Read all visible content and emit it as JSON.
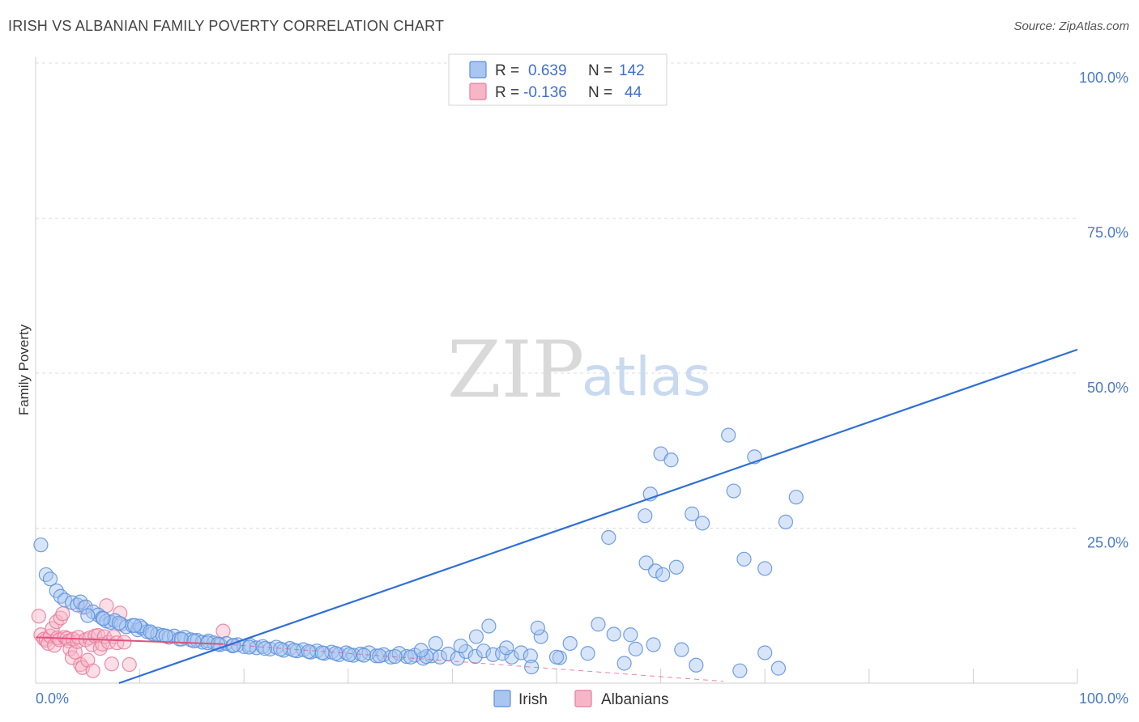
{
  "title": "IRISH VS ALBANIAN FAMILY POVERTY CORRELATION CHART",
  "source": "Source: ZipAtlas.com",
  "watermark": {
    "zip": "ZIP",
    "atlas": "atlas"
  },
  "colors": {
    "irish_fill": "#a9c6f0",
    "irish_stroke": "#5b8fdc",
    "irish_line": "#2f6fd6",
    "albanian_fill": "#f6b6c8",
    "albanian_stroke": "#e87a9c",
    "albanian_line": "#e0507e",
    "grid": "#dcdcdc",
    "tick_text": "#4a7bc8"
  },
  "legend": {
    "r_label": "R =",
    "n_label": "N =",
    "irish": {
      "r": "0.639",
      "n": "142"
    },
    "albanian": {
      "r": "-0.136",
      "n": "44"
    }
  },
  "chart_data": {
    "type": "scatter",
    "title": "IRISH VS ALBANIAN FAMILY POVERTY CORRELATION CHART",
    "xlabel": "",
    "ylabel": "Family Poverty",
    "xlim": [
      0,
      100
    ],
    "ylim": [
      0,
      100
    ],
    "x_tick_labels": [
      "0.0%",
      "100.0%"
    ],
    "y_ticks": [
      25,
      50,
      75,
      100
    ],
    "y_tick_labels": [
      "25.0%",
      "50.0%",
      "75.0%",
      "100.0%"
    ],
    "grid": true,
    "legend_position": "top-center",
    "series": [
      {
        "name": "Irish",
        "r": 0.639,
        "n": 142,
        "trend": {
          "x": [
            8,
            100
          ],
          "y": [
            0,
            53.8
          ]
        },
        "points": [
          [
            0.5,
            22.3
          ],
          [
            1.0,
            17.5
          ],
          [
            1.4,
            16.8
          ],
          [
            2.0,
            14.9
          ],
          [
            2.4,
            14.0
          ],
          [
            2.8,
            13.4
          ],
          [
            3.5,
            13.0
          ],
          [
            4.0,
            12.6
          ],
          [
            4.3,
            13.1
          ],
          [
            4.8,
            12.3
          ],
          [
            5.5,
            11.5
          ],
          [
            6.0,
            11.0
          ],
          [
            6.4,
            10.5
          ],
          [
            6.8,
            10.0
          ],
          [
            7.2,
            9.8
          ],
          [
            7.6,
            10.1
          ],
          [
            8.2,
            9.5
          ],
          [
            8.7,
            9.1
          ],
          [
            9.3,
            9.3
          ],
          [
            9.8,
            8.6
          ],
          [
            10.2,
            8.9
          ],
          [
            10.7,
            8.3
          ],
          [
            11.2,
            8.0
          ],
          [
            11.7,
            7.9
          ],
          [
            12.2,
            7.7
          ],
          [
            12.8,
            7.4
          ],
          [
            13.3,
            7.6
          ],
          [
            13.8,
            7.1
          ],
          [
            14.3,
            7.4
          ],
          [
            14.9,
            7.0
          ],
          [
            15.5,
            6.9
          ],
          [
            16.0,
            6.6
          ],
          [
            16.6,
            6.8
          ],
          [
            17.1,
            6.5
          ],
          [
            17.7,
            6.2
          ],
          [
            18.3,
            6.4
          ],
          [
            18.9,
            6.0
          ],
          [
            19.4,
            6.2
          ],
          [
            20.0,
            5.9
          ],
          [
            20.6,
            6.1
          ],
          [
            21.2,
            5.7
          ],
          [
            21.8,
            5.9
          ],
          [
            22.5,
            5.5
          ],
          [
            23.1,
            5.8
          ],
          [
            23.8,
            5.3
          ],
          [
            24.4,
            5.6
          ],
          [
            25.1,
            5.2
          ],
          [
            25.7,
            5.4
          ],
          [
            26.4,
            5.0
          ],
          [
            27.0,
            5.2
          ],
          [
            27.7,
            4.8
          ],
          [
            28.4,
            5.0
          ],
          [
            29.1,
            4.6
          ],
          [
            29.8,
            4.9
          ],
          [
            30.5,
            4.5
          ],
          [
            31.2,
            4.7
          ],
          [
            32.0,
            4.9
          ],
          [
            32.7,
            4.4
          ],
          [
            33.4,
            4.6
          ],
          [
            34.1,
            4.2
          ],
          [
            34.9,
            4.8
          ],
          [
            35.6,
            4.3
          ],
          [
            36.4,
            4.5
          ],
          [
            37.2,
            4.0
          ],
          [
            38.0,
            4.4
          ],
          [
            38.8,
            4.2
          ],
          [
            39.6,
            4.7
          ],
          [
            40.5,
            4.0
          ],
          [
            41.3,
            5.1
          ],
          [
            42.2,
            4.3
          ],
          [
            43.0,
            5.2
          ],
          [
            43.9,
            4.6
          ],
          [
            44.8,
            4.8
          ],
          [
            45.7,
            4.2
          ],
          [
            46.6,
            4.9
          ],
          [
            47.5,
            4.4
          ],
          [
            10.0,
            9.2
          ],
          [
            11.0,
            8.3
          ],
          [
            12.5,
            7.6
          ],
          [
            14.0,
            7.1
          ],
          [
            15.2,
            6.8
          ],
          [
            16.5,
            6.5
          ],
          [
            17.5,
            6.3
          ],
          [
            19.0,
            6.1
          ],
          [
            20.5,
            5.8
          ],
          [
            22.0,
            5.6
          ],
          [
            23.5,
            5.5
          ],
          [
            24.8,
            5.3
          ],
          [
            26.2,
            5.1
          ],
          [
            27.5,
            4.9
          ],
          [
            28.8,
            4.8
          ],
          [
            30.1,
            4.6
          ],
          [
            31.5,
            4.5
          ],
          [
            33.0,
            4.4
          ],
          [
            34.5,
            4.3
          ],
          [
            36.0,
            4.2
          ],
          [
            37.5,
            4.3
          ],
          [
            5.0,
            10.9
          ],
          [
            6.5,
            10.4
          ],
          [
            8.0,
            9.7
          ],
          [
            9.5,
            9.3
          ],
          [
            37.0,
            5.3
          ],
          [
            38.4,
            6.4
          ],
          [
            40.8,
            6.0
          ],
          [
            42.3,
            7.5
          ],
          [
            43.5,
            9.2
          ],
          [
            47.6,
            2.6
          ],
          [
            48.5,
            7.5
          ],
          [
            50.3,
            4.1
          ],
          [
            51.3,
            6.4
          ],
          [
            55.5,
            7.9
          ],
          [
            57.1,
            7.8
          ],
          [
            57.6,
            5.5
          ],
          [
            48.2,
            8.9
          ],
          [
            54.0,
            9.5
          ],
          [
            53.0,
            4.8
          ],
          [
            45.2,
            5.7
          ],
          [
            50.0,
            4.2
          ],
          [
            56.5,
            3.2
          ],
          [
            59.3,
            6.2
          ],
          [
            62.0,
            5.4
          ],
          [
            63.4,
            2.9
          ],
          [
            67.6,
            2.0
          ],
          [
            70.0,
            4.9
          ],
          [
            71.3,
            2.4
          ],
          [
            58.6,
            19.4
          ],
          [
            59.5,
            18.1
          ],
          [
            60.2,
            17.5
          ],
          [
            61.5,
            18.7
          ],
          [
            59.0,
            30.5
          ],
          [
            58.5,
            27.0
          ],
          [
            55.0,
            23.5
          ],
          [
            63.0,
            27.3
          ],
          [
            64.0,
            25.8
          ],
          [
            67.0,
            31.0
          ],
          [
            66.5,
            40.0
          ],
          [
            69.0,
            36.5
          ],
          [
            73.0,
            30.0
          ],
          [
            72.0,
            26.0
          ],
          [
            68.0,
            20.0
          ],
          [
            70.0,
            18.5
          ],
          [
            60.0,
            37.0
          ],
          [
            61.0,
            36.0
          ]
        ]
      },
      {
        "name": "Albanians",
        "r": -0.136,
        "n": 44,
        "trend": {
          "x": [
            0,
            18
          ],
          "y": [
            7.4,
            6.3
          ]
        },
        "trend_dashed": {
          "x": [
            18,
            66
          ],
          "y": [
            6.3,
            0.3
          ]
        },
        "points": [
          [
            0.3,
            10.8
          ],
          [
            0.5,
            7.8
          ],
          [
            0.8,
            7.1
          ],
          [
            1.0,
            6.9
          ],
          [
            1.2,
            6.4
          ],
          [
            1.4,
            7.6
          ],
          [
            1.6,
            8.8
          ],
          [
            1.8,
            6.1
          ],
          [
            2.0,
            9.9
          ],
          [
            2.1,
            7.3
          ],
          [
            2.3,
            7.0
          ],
          [
            2.4,
            10.5
          ],
          [
            2.6,
            11.2
          ],
          [
            2.8,
            7.4
          ],
          [
            3.0,
            7.2
          ],
          [
            3.2,
            6.8
          ],
          [
            3.3,
            5.5
          ],
          [
            3.5,
            4.1
          ],
          [
            3.6,
            7.1
          ],
          [
            3.8,
            5.0
          ],
          [
            4.0,
            6.7
          ],
          [
            4.1,
            7.4
          ],
          [
            4.3,
            3.0
          ],
          [
            4.5,
            2.5
          ],
          [
            4.6,
            12.2
          ],
          [
            4.8,
            7.0
          ],
          [
            5.0,
            3.7
          ],
          [
            5.2,
            7.3
          ],
          [
            5.4,
            6.2
          ],
          [
            5.5,
            2.0
          ],
          [
            5.7,
            7.6
          ],
          [
            6.0,
            7.7
          ],
          [
            6.2,
            5.6
          ],
          [
            6.4,
            6.3
          ],
          [
            6.6,
            7.5
          ],
          [
            6.8,
            12.5
          ],
          [
            7.0,
            6.6
          ],
          [
            7.3,
            3.1
          ],
          [
            7.5,
            7.5
          ],
          [
            7.8,
            6.5
          ],
          [
            8.1,
            11.3
          ],
          [
            8.5,
            6.6
          ],
          [
            9.0,
            3.0
          ],
          [
            18.0,
            8.4
          ]
        ]
      }
    ]
  }
}
